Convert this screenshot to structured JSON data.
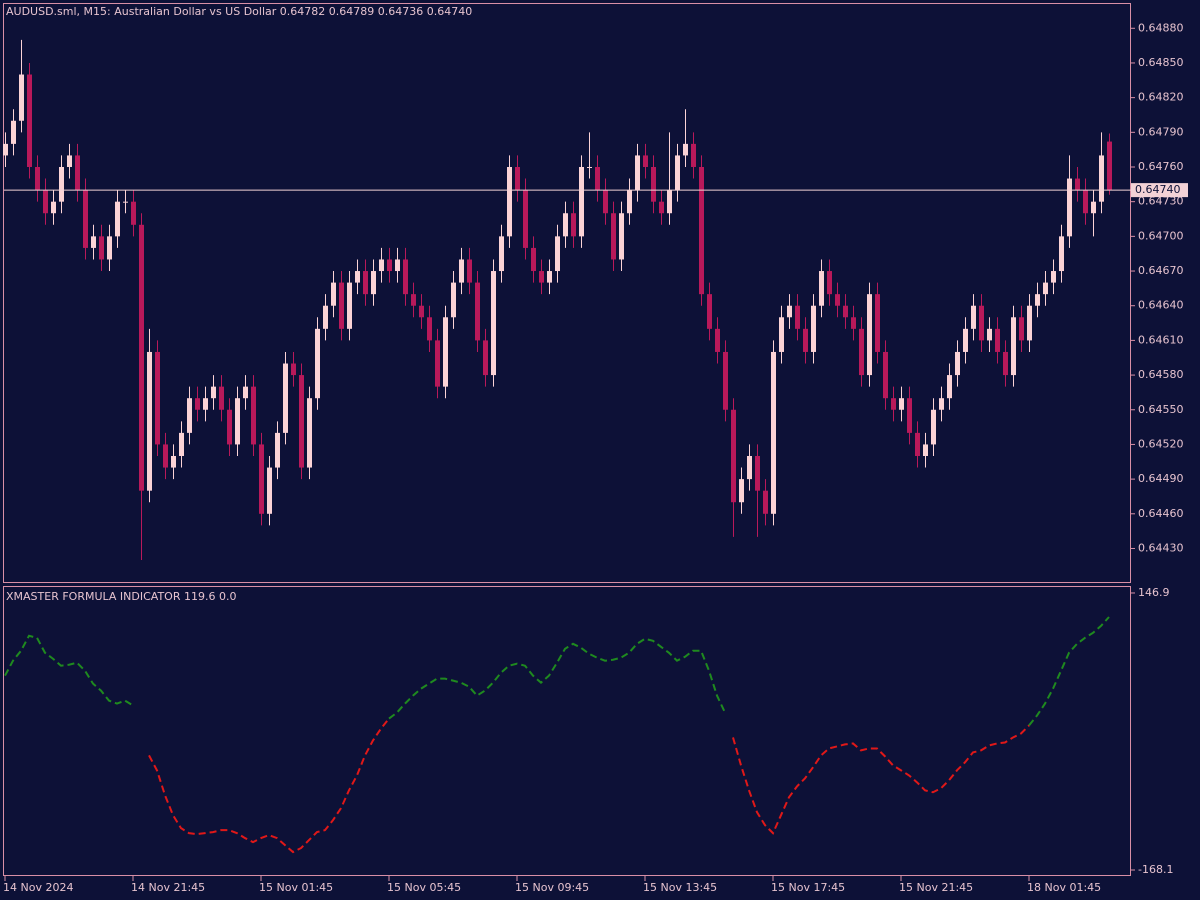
{
  "chart_data": [
    {
      "type": "candlestick",
      "title": "AUDUSD.sml, M15:  Australian Dollar vs US Dollar  0.64782 0.64789 0.64736 0.64740",
      "categories": [
        "14 Nov 2024",
        null,
        null,
        null,
        null,
        null,
        null,
        null,
        null,
        null,
        null,
        null,
        null,
        null,
        null,
        null,
        "14 Nov 21:45",
        null,
        null,
        null,
        null,
        null,
        null,
        null,
        null,
        null,
        null,
        null,
        null,
        null,
        null,
        null,
        "15 Nov 01:45",
        null,
        null,
        null,
        null,
        null,
        null,
        null,
        null,
        null,
        null,
        null,
        null,
        null,
        null,
        null,
        "15 Nov 05:45",
        null,
        null,
        null,
        null,
        null,
        null,
        null,
        null,
        null,
        null,
        null,
        null,
        null,
        null,
        null,
        "15 Nov 09:45",
        null,
        null,
        null,
        null,
        null,
        null,
        null,
        null,
        null,
        null,
        null,
        null,
        null,
        null,
        null,
        "15 Nov 13:45",
        null,
        null,
        null,
        null,
        null,
        null,
        null,
        null,
        null,
        null,
        null,
        null,
        null,
        null,
        null,
        "15 Nov 17:45",
        null,
        null,
        null,
        null,
        null,
        null,
        null,
        null,
        null,
        null,
        null,
        null,
        null,
        null,
        null,
        "15 Nov 21:45",
        null,
        null,
        null,
        null,
        null,
        null,
        null,
        null,
        null,
        null,
        null,
        null,
        null,
        null,
        null,
        "18 Nov 01:45",
        null,
        null,
        null,
        null,
        null,
        null,
        null,
        null,
        null,
        null
      ],
      "open": [
        0.6477,
        0.6478,
        0.648,
        0.6484,
        0.6476,
        0.6474,
        0.6472,
        0.6473,
        0.6476,
        0.6477,
        0.6474,
        0.6469,
        0.647,
        0.6468,
        0.647,
        0.6473,
        0.6473,
        0.6471,
        0.6448,
        0.646,
        0.6452,
        0.645,
        0.6451,
        0.6453,
        0.6456,
        0.6455,
        0.6456,
        0.6457,
        0.6455,
        0.6452,
        0.6456,
        0.6457,
        0.6452,
        0.6446,
        0.645,
        0.6453,
        0.6459,
        0.6458,
        0.645,
        0.6456,
        0.6462,
        0.6464,
        0.6466,
        0.6462,
        0.6466,
        0.6467,
        0.6465,
        0.6467,
        0.6468,
        0.6467,
        0.6468,
        0.6465,
        0.6464,
        0.6463,
        0.6461,
        0.6457,
        0.6463,
        0.6466,
        0.6468,
        0.6466,
        0.6461,
        0.6458,
        0.6467,
        0.647,
        0.6476,
        0.6474,
        0.6469,
        0.6467,
        0.6466,
        0.6467,
        0.647,
        0.6472,
        0.647,
        0.6476,
        0.6476,
        0.6474,
        0.6472,
        0.6468,
        0.6472,
        0.6474,
        0.6477,
        0.6476,
        0.6473,
        0.6472,
        0.6474,
        0.6477,
        0.6478,
        0.6476,
        0.6465,
        0.6462,
        0.646,
        0.6455,
        0.6447,
        0.6449,
        0.6451,
        0.6448,
        0.6446,
        0.646,
        0.6463,
        0.6464,
        0.6462,
        0.646,
        0.6464,
        0.6467,
        0.6465,
        0.6464,
        0.6463,
        0.6462,
        0.6458,
        0.6465,
        0.646,
        0.6456,
        0.6455,
        0.6456,
        0.6453,
        0.6451,
        0.6452,
        0.6455,
        0.6456,
        0.6458,
        0.646,
        0.6462,
        0.6464,
        0.6461,
        0.6462,
        0.646,
        0.6458,
        0.6463,
        0.6461,
        0.6464,
        0.6465,
        0.6466,
        0.6467,
        0.647,
        0.6475,
        0.6474,
        0.6472,
        0.6473,
        0.64782
      ],
      "high": [
        0.6479,
        0.6481,
        0.6487,
        0.6485,
        0.6477,
        0.6475,
        0.6474,
        0.6477,
        0.6478,
        0.6478,
        0.6475,
        0.6471,
        0.6471,
        0.6471,
        0.6474,
        0.6474,
        0.6474,
        0.6472,
        0.6462,
        0.6461,
        0.6453,
        0.6452,
        0.6454,
        0.6457,
        0.6457,
        0.6457,
        0.6458,
        0.6458,
        0.6456,
        0.6457,
        0.6458,
        0.6458,
        0.6453,
        0.6451,
        0.6454,
        0.646,
        0.646,
        0.6459,
        0.6457,
        0.6463,
        0.6465,
        0.6467,
        0.6467,
        0.6467,
        0.6468,
        0.6468,
        0.6468,
        0.6469,
        0.6469,
        0.6469,
        0.6469,
        0.6466,
        0.6465,
        0.6464,
        0.6462,
        0.6464,
        0.6467,
        0.6469,
        0.6469,
        0.6467,
        0.6462,
        0.6468,
        0.6471,
        0.6477,
        0.6477,
        0.6475,
        0.647,
        0.6468,
        0.6468,
        0.6471,
        0.6473,
        0.6473,
        0.6477,
        0.6479,
        0.6477,
        0.6475,
        0.6473,
        0.6473,
        0.6475,
        0.6478,
        0.6478,
        0.6477,
        0.6474,
        0.6479,
        0.6478,
        0.6481,
        0.6479,
        0.6477,
        0.6466,
        0.6463,
        0.6461,
        0.6456,
        0.645,
        0.6452,
        0.6452,
        0.6449,
        0.6461,
        0.6464,
        0.6465,
        0.6465,
        0.6463,
        0.6465,
        0.6468,
        0.6468,
        0.6466,
        0.6465,
        0.6464,
        0.6463,
        0.6466,
        0.6466,
        0.6461,
        0.6457,
        0.6457,
        0.6457,
        0.6454,
        0.6453,
        0.6456,
        0.6457,
        0.6459,
        0.6461,
        0.6463,
        0.6465,
        0.6465,
        0.6463,
        0.6463,
        0.6461,
        0.6464,
        0.6464,
        0.6465,
        0.6466,
        0.6467,
        0.6468,
        0.6471,
        0.6477,
        0.6476,
        0.6475,
        0.6474,
        0.6479,
        0.64789
      ],
      "low": [
        0.6476,
        0.6477,
        0.6479,
        0.6475,
        0.6473,
        0.6471,
        0.6471,
        0.6472,
        0.6475,
        0.6473,
        0.6468,
        0.6468,
        0.6467,
        0.6467,
        0.6469,
        0.6472,
        0.647,
        0.6442,
        0.6447,
        0.6451,
        0.6449,
        0.6449,
        0.645,
        0.6452,
        0.6454,
        0.6454,
        0.6455,
        0.6454,
        0.6451,
        0.6451,
        0.6455,
        0.6451,
        0.6445,
        0.6445,
        0.6449,
        0.6452,
        0.6457,
        0.6449,
        0.6449,
        0.6455,
        0.6461,
        0.6463,
        0.6461,
        0.6461,
        0.6465,
        0.6464,
        0.6464,
        0.6466,
        0.6466,
        0.6466,
        0.6464,
        0.6463,
        0.6462,
        0.646,
        0.6456,
        0.6456,
        0.6462,
        0.6465,
        0.6465,
        0.646,
        0.6457,
        0.6457,
        0.6466,
        0.6469,
        0.6473,
        0.6468,
        0.6466,
        0.6465,
        0.6465,
        0.6466,
        0.6469,
        0.6469,
        0.6469,
        0.6475,
        0.6473,
        0.6471,
        0.6467,
        0.6467,
        0.6471,
        0.6473,
        0.6475,
        0.6472,
        0.6471,
        0.6471,
        0.6473,
        0.6476,
        0.6475,
        0.6464,
        0.6461,
        0.6459,
        0.6454,
        0.6444,
        0.6446,
        0.6448,
        0.6444,
        0.6445,
        0.6445,
        0.6459,
        0.6462,
        0.6461,
        0.6459,
        0.6459,
        0.6463,
        0.6464,
        0.6463,
        0.6462,
        0.6461,
        0.6457,
        0.6457,
        0.6459,
        0.6455,
        0.6454,
        0.6454,
        0.6452,
        0.645,
        0.645,
        0.6451,
        0.6454,
        0.6455,
        0.6457,
        0.6459,
        0.6461,
        0.646,
        0.646,
        0.6459,
        0.6457,
        0.6457,
        0.646,
        0.646,
        0.6463,
        0.6464,
        0.6465,
        0.6466,
        0.6469,
        0.6473,
        0.6471,
        0.647,
        0.6472,
        0.64736
      ],
      "close": [
        0.6478,
        0.648,
        0.6484,
        0.6476,
        0.6474,
        0.6472,
        0.6473,
        0.6476,
        0.6477,
        0.6474,
        0.6469,
        0.647,
        0.6468,
        0.647,
        0.6473,
        0.6473,
        0.6471,
        0.6448,
        0.646,
        0.6452,
        0.645,
        0.6451,
        0.6453,
        0.6456,
        0.6455,
        0.6456,
        0.6457,
        0.6455,
        0.6452,
        0.6456,
        0.6457,
        0.6452,
        0.6446,
        0.645,
        0.6453,
        0.6459,
        0.6458,
        0.645,
        0.6456,
        0.6462,
        0.6464,
        0.6466,
        0.6462,
        0.6466,
        0.6467,
        0.6465,
        0.6467,
        0.6468,
        0.6467,
        0.6468,
        0.6465,
        0.6464,
        0.6463,
        0.6461,
        0.6457,
        0.6463,
        0.6466,
        0.6468,
        0.6466,
        0.6461,
        0.6458,
        0.6467,
        0.647,
        0.6476,
        0.6474,
        0.6469,
        0.6467,
        0.6466,
        0.6467,
        0.647,
        0.6472,
        0.647,
        0.6476,
        0.6476,
        0.6474,
        0.6472,
        0.6468,
        0.6472,
        0.6474,
        0.6477,
        0.6476,
        0.6473,
        0.6472,
        0.6474,
        0.6477,
        0.6478,
        0.6476,
        0.6465,
        0.6462,
        0.646,
        0.6455,
        0.6447,
        0.6449,
        0.6451,
        0.6448,
        0.6446,
        0.646,
        0.6463,
        0.6464,
        0.6462,
        0.646,
        0.6464,
        0.6467,
        0.6465,
        0.6464,
        0.6463,
        0.6462,
        0.6458,
        0.6465,
        0.646,
        0.6456,
        0.6455,
        0.6456,
        0.6453,
        0.6451,
        0.6452,
        0.6455,
        0.6456,
        0.6458,
        0.646,
        0.6462,
        0.6464,
        0.6461,
        0.6462,
        0.646,
        0.6458,
        0.6463,
        0.6461,
        0.6464,
        0.6465,
        0.6466,
        0.6467,
        0.647,
        0.6475,
        0.6474,
        0.6472,
        0.6473,
        0.6477,
        0.6474
      ],
      "up_color": "#fbd3d6",
      "down_color": "#b8195a",
      "last_price": {
        "value": 0.6474,
        "label": "0.64740"
      },
      "ylim": [
        0.64401,
        0.64901
      ],
      "yticks": [
        {
          "value": 0.6488,
          "label": "0.64880"
        },
        {
          "value": 0.6485,
          "label": "0.64850"
        },
        {
          "value": 0.6482,
          "label": "0.64820"
        },
        {
          "value": 0.6479,
          "label": "0.64790"
        },
        {
          "value": 0.6476,
          "label": "0.64760"
        },
        {
          "value": 0.6473,
          "label": "0.64730"
        },
        {
          "value": 0.647,
          "label": "0.64700"
        },
        {
          "value": 0.6467,
          "label": "0.64670"
        },
        {
          "value": 0.6464,
          "label": "0.64640"
        },
        {
          "value": 0.6461,
          "label": "0.64610"
        },
        {
          "value": 0.6458,
          "label": "0.64580"
        },
        {
          "value": 0.6455,
          "label": "0.64550"
        },
        {
          "value": 0.6452,
          "label": "0.64520"
        },
        {
          "value": 0.6449,
          "label": "0.64490"
        },
        {
          "value": 0.6446,
          "label": "0.64460"
        },
        {
          "value": 0.6443,
          "label": "0.64430"
        }
      ],
      "grid": false
    },
    {
      "type": "line",
      "title": "XMASTER FORMULA INDICATOR 119.6 0.0",
      "line_style": "dashed",
      "series": [
        {
          "color": "#1f8a1f",
          "values": [
            52.9,
            69.9,
            81.2,
            98.2,
            95.9,
            78.9,
            72.1,
            64.2,
            65.3,
            67.6,
            58.5,
            43.8,
            35.9,
            24.5,
            21.1,
            24.5,
            18.9,
            null,
            null,
            null,
            null,
            null,
            null,
            null,
            null,
            null,
            null,
            null,
            null,
            null,
            null,
            null,
            null,
            null,
            null,
            null,
            null,
            null,
            null,
            null,
            null,
            null,
            null,
            null,
            null,
            null,
            null,
            null,
            4.1,
            10.9,
            21.1,
            30.2,
            38.1,
            43.8,
            49.5,
            49.5,
            47.2,
            44.9,
            40.4,
            30.2,
            35.9,
            44.9,
            56.3,
            64.2,
            66.5,
            64.2,
            52.9,
            44.9,
            52.9,
            67.6,
            83.4,
            89.1,
            84.6,
            77.8,
            73.3,
            69.9,
            71.0,
            73.3,
            78.9,
            89.1,
            94.8,
            92.5,
            85.7,
            78.9,
            69.9,
            74.4,
            81.2,
            81.2,
            58.5,
            30.2,
            10.9,
            null,
            null,
            null,
            null,
            null,
            null,
            null,
            null,
            null,
            null,
            null,
            null,
            null,
            null,
            null,
            null,
            null,
            null,
            null,
            null,
            null,
            null,
            null,
            null,
            null,
            null,
            null,
            null,
            null,
            null,
            null,
            null,
            null,
            null,
            null,
            null,
            null,
            -3.8,
            7.5,
            21.1,
            38.1,
            58.5,
            78.9,
            89.1,
            95.9,
            101.6,
            109.5,
            119.6
          ]
        },
        {
          "color": "#e01818",
          "values": [
            null,
            null,
            null,
            null,
            null,
            null,
            null,
            null,
            null,
            null,
            null,
            null,
            null,
            null,
            null,
            null,
            null,
            null,
            -37.8,
            -54.8,
            -83.1,
            -105.8,
            -120.5,
            -126.2,
            -127.3,
            -126.2,
            -125.0,
            -122.8,
            -122.8,
            -126.2,
            -131.8,
            -136.4,
            -131.8,
            -128.4,
            -131.8,
            -139.8,
            -147.7,
            -143.2,
            -134.1,
            -125.0,
            -122.8,
            -111.4,
            -97.8,
            -77.5,
            -60.5,
            -37.8,
            -20.8,
            -7.2,
            4.1,
            null,
            null,
            null,
            null,
            null,
            null,
            null,
            null,
            null,
            null,
            null,
            null,
            null,
            null,
            null,
            null,
            null,
            null,
            null,
            null,
            null,
            null,
            null,
            null,
            null,
            null,
            null,
            null,
            null,
            null,
            null,
            null,
            null,
            null,
            null,
            null,
            null,
            null,
            null,
            null,
            null,
            null,
            -17.4,
            -49.1,
            -77.5,
            -102.4,
            -117.1,
            -126.2,
            -105.8,
            -85.4,
            -73.0,
            -63.9,
            -51.4,
            -37.8,
            -29.9,
            -27.6,
            -25.3,
            -24.2,
            -32.1,
            -29.9,
            -29.9,
            -38.9,
            -49.1,
            -54.8,
            -60.5,
            -68.4,
            -77.5,
            -79.7,
            -75.2,
            -66.1,
            -54.8,
            -45.7,
            -34.4,
            -32.1,
            -26.5,
            -24.2,
            -23.1,
            -17.4,
            -12.9,
            -3.8,
            null,
            null,
            null,
            null,
            null,
            null,
            null,
            null,
            null,
            null
          ]
        }
      ],
      "ylim": [
        -173.8,
        153.7
      ],
      "yticks": [
        146.9,
        -168.1
      ]
    }
  ]
}
